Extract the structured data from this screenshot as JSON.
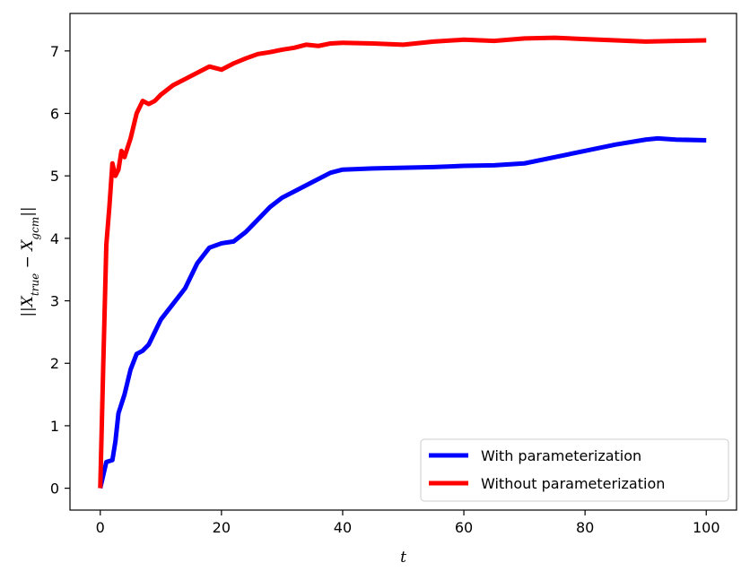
{
  "chart_data": {
    "type": "line",
    "xlabel": "t",
    "ylabel": {
      "prefix": "||X",
      "sub1": "true",
      "mid": " − X",
      "sub2": "gcm",
      "suffix": "||"
    },
    "xlim": [
      -5,
      105
    ],
    "ylim": [
      -0.35,
      7.6
    ],
    "xticks": [
      0,
      20,
      40,
      60,
      80,
      100
    ],
    "yticks": [
      0,
      1,
      2,
      3,
      4,
      5,
      6,
      7
    ],
    "grid": false,
    "legend_position": "lower-right",
    "series": [
      {
        "name": "With parameterization",
        "color": "#0000ff",
        "x": [
          0,
          1,
          2,
          2.5,
          3,
          4,
          5,
          6,
          7,
          8,
          9,
          10,
          12,
          14,
          16,
          18,
          20,
          22,
          24,
          26,
          28,
          30,
          32,
          35,
          38,
          40,
          45,
          50,
          55,
          60,
          65,
          70,
          75,
          80,
          85,
          90,
          92,
          95,
          100
        ],
        "y": [
          0,
          0.42,
          0.45,
          0.75,
          1.2,
          1.5,
          1.9,
          2.15,
          2.2,
          2.3,
          2.5,
          2.7,
          2.95,
          3.2,
          3.6,
          3.85,
          3.92,
          3.95,
          4.1,
          4.3,
          4.5,
          4.65,
          4.75,
          4.9,
          5.05,
          5.1,
          5.12,
          5.13,
          5.14,
          5.16,
          5.17,
          5.2,
          5.3,
          5.4,
          5.5,
          5.58,
          5.6,
          5.58,
          5.57
        ]
      },
      {
        "name": "Without parameterization",
        "color": "#ff0000",
        "x": [
          0,
          0.5,
          1,
          1.5,
          2,
          2.5,
          3,
          3.5,
          4,
          5,
          6,
          7,
          8,
          9,
          10,
          12,
          14,
          16,
          18,
          20,
          22,
          24,
          26,
          28,
          30,
          32,
          34,
          36,
          38,
          40,
          45,
          50,
          55,
          60,
          65,
          70,
          75,
          80,
          85,
          90,
          95,
          100
        ],
        "y": [
          0,
          2.0,
          3.9,
          4.5,
          5.2,
          5.0,
          5.1,
          5.4,
          5.3,
          5.6,
          6.0,
          6.2,
          6.15,
          6.2,
          6.3,
          6.45,
          6.55,
          6.65,
          6.75,
          6.7,
          6.8,
          6.88,
          6.95,
          6.98,
          7.02,
          7.05,
          7.1,
          7.08,
          7.12,
          7.13,
          7.12,
          7.1,
          7.15,
          7.18,
          7.16,
          7.2,
          7.21,
          7.19,
          7.17,
          7.15,
          7.16,
          7.17
        ]
      }
    ]
  }
}
